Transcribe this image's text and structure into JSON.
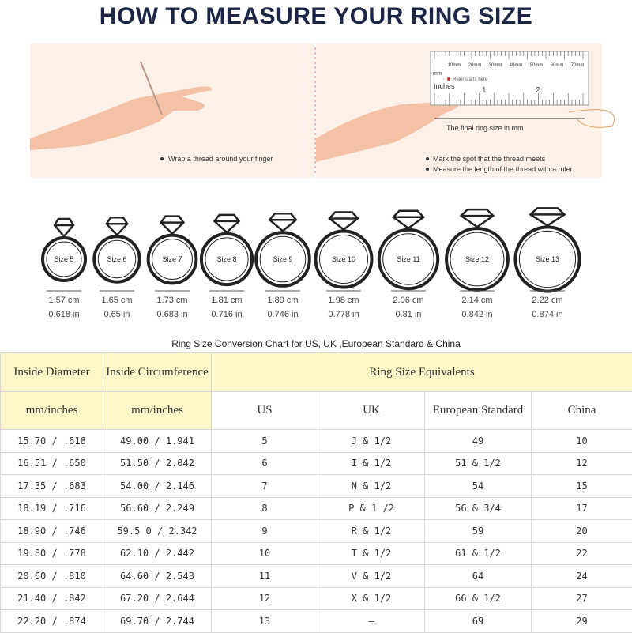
{
  "header": {
    "title": "HOW TO MEASURE YOUR RING SIZE"
  },
  "guide": {
    "left_step": "Wrap a thread around your finger",
    "ruler": {
      "mm_unit": "mm",
      "mm_labels": [
        "10mm",
        "20mm",
        "30mm",
        "40mm",
        "50mm",
        "60mm",
        "70mm"
      ],
      "start": "Ruler starts here",
      "inch_unit": "Inches",
      "inch_labels": [
        "1",
        "2"
      ],
      "final": "The final ring size in mm"
    },
    "right_steps": [
      "Mark the spot that the thread meets",
      "Measure the length of the thread with a ruler"
    ]
  },
  "rings": [
    {
      "size": "Size 5",
      "cm": "1.57 cm",
      "inch": "0.618 in"
    },
    {
      "size": "Size 6",
      "cm": "1.65 cm",
      "inch": "0.65 in"
    },
    {
      "size": "Size 7",
      "cm": "1.73 cm",
      "inch": "0.683 in"
    },
    {
      "size": "Size 8",
      "cm": "1.81 cm",
      "inch": "0.716 in"
    },
    {
      "size": "Size 9",
      "cm": "1.89 cm",
      "inch": "0.746 in"
    },
    {
      "size": "Size 10",
      "cm": "1.98 cm",
      "inch": "0.778 in"
    },
    {
      "size": "Size 11",
      "cm": "2.06 cm",
      "inch": "0.81 in"
    },
    {
      "size": "Size 12",
      "cm": "2.14 cm",
      "inch": "0.842 in"
    },
    {
      "size": "Size 13",
      "cm": "2.22 cm",
      "inch": "0.874 in"
    }
  ],
  "table": {
    "caption": "Ring Size Conversion Chart for US, UK ,European Standard & China",
    "group_headers": [
      "Inside Diameter",
      "Inside Circumference",
      "Ring Size Equivalents"
    ],
    "sub_headers": [
      "mm/inches",
      "mm/inches",
      "US",
      "UK",
      "European Standard",
      "China"
    ],
    "rows": [
      [
        "15.70 / .618",
        "49.00 / 1.941",
        "5",
        "J & 1/2",
        "49",
        "10"
      ],
      [
        "16.51 / .650",
        "51.50 / 2.042",
        "6",
        "I & 1/2",
        "51 & 1/2",
        "12"
      ],
      [
        "17.35 / .683",
        "54.00 / 2.146",
        "7",
        "N & 1/2",
        "54",
        "15"
      ],
      [
        "18.19 / .716",
        "56.60 / 2.249",
        "8",
        "P & 1 /2",
        "56 & 3/4",
        "17"
      ],
      [
        "18.90 / .746",
        "59.5 0 / 2.342",
        "9",
        "R & 1/2",
        "59",
        "20"
      ],
      [
        "19.80 / .778",
        "62.10 / 2.442",
        "10",
        "T & 1/2",
        "61 & 1/2",
        "22"
      ],
      [
        "20.60 / .810",
        "64.60 / 2.543",
        "11",
        "V & 1/2",
        "64",
        "24"
      ],
      [
        "21.40 / .842",
        "67.20 / 2.644",
        "12",
        "X & 1/2",
        "66 & 1/2",
        "27"
      ],
      [
        "22.20 / .874",
        "69.70 / 2.744",
        "13",
        "—",
        "69",
        "29"
      ]
    ]
  }
}
